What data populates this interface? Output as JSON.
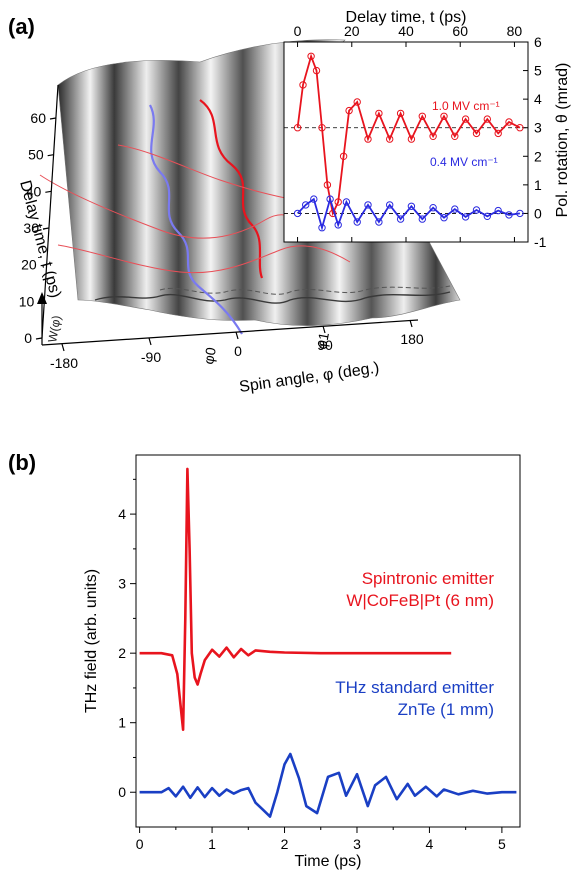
{
  "panels": {
    "a": {
      "label": "(a)",
      "surface": {
        "delay_axis": {
          "label": "Delay time, t (ps)",
          "ticks": [
            "0",
            "10",
            "20",
            "30",
            "40",
            "50",
            "60"
          ]
        },
        "spin_axis": {
          "label": "Spin angle, φ (deg.)",
          "ticks": [
            "-180",
            "-90",
            "0",
            "90",
            "180"
          ]
        },
        "markers": [
          "φ0",
          "φ1"
        ],
        "potential_label": "W(φ)"
      },
      "inset": {
        "xlabel": "Delay time, t (ps)",
        "ylabel": "Pol. rotation, θ (mrad)",
        "xticks": [
          "0",
          "20",
          "40",
          "60",
          "80"
        ],
        "yticks": [
          "-1",
          "0",
          "1",
          "2",
          "3",
          "4",
          "5",
          "6"
        ],
        "series_labels": [
          "1.0 MV cm⁻¹",
          "0.4 MV cm⁻¹"
        ],
        "colors": {
          "high": "#e8141e",
          "low": "#2a2ae0"
        }
      }
    },
    "b": {
      "label": "(b)"
    }
  },
  "chart_data": [
    {
      "type": "line",
      "xlabel": "Delay time, t (ps)",
      "ylabel": "Pol. rotation, θ (mrad)",
      "xlim": [
        -5,
        85
      ],
      "ylim": [
        -1,
        6
      ],
      "series": [
        {
          "name": "1.0 MV cm⁻¹",
          "x": [
            0,
            2,
            5,
            7,
            9,
            11,
            13,
            15,
            17,
            19,
            22,
            26,
            30,
            34,
            38,
            42,
            46,
            50,
            54,
            58,
            62,
            66,
            70,
            74,
            78,
            82
          ],
          "y": [
            3.0,
            4.5,
            5.5,
            5.0,
            3.0,
            1.0,
            0.0,
            0.4,
            2.0,
            3.6,
            3.9,
            2.6,
            3.5,
            2.6,
            3.5,
            2.6,
            3.4,
            2.7,
            3.4,
            2.7,
            3.3,
            2.8,
            3.3,
            2.8,
            3.2,
            3.0
          ]
        },
        {
          "name": "0.4 MV cm⁻¹",
          "x": [
            0,
            3,
            6,
            9,
            12,
            15,
            18,
            22,
            26,
            30,
            34,
            38,
            42,
            46,
            50,
            54,
            58,
            62,
            66,
            70,
            74,
            78,
            82
          ],
          "y": [
            0.0,
            0.3,
            0.5,
            -0.5,
            0.5,
            -0.4,
            0.4,
            -0.3,
            0.3,
            -0.3,
            0.3,
            -0.2,
            0.25,
            -0.2,
            0.2,
            -0.15,
            0.15,
            -0.12,
            0.12,
            -0.1,
            0.1,
            -0.05,
            0.0
          ]
        }
      ]
    },
    {
      "type": "line",
      "xlabel": "Time (ps)",
      "ylabel": "THz field  (arb. units)",
      "xlim": [
        -0.05,
        5.25
      ],
      "ylim": [
        -0.5,
        4.85
      ],
      "xticks": [
        0,
        1,
        2,
        3,
        4,
        5
      ],
      "yticks": [
        0,
        1,
        2,
        3,
        4
      ],
      "annotations": [
        {
          "text": "Spintronic emitter",
          "color": "#e8141e"
        },
        {
          "text": "W|CoFeB|Pt (6 nm)",
          "color": "#e8141e"
        },
        {
          "text": "THz standard emitter",
          "color": "#1a3fc4"
        },
        {
          "text": "ZnTe (1 mm)",
          "color": "#1a3fc4"
        }
      ],
      "series": [
        {
          "name": "Spintronic emitter",
          "color": "#e8141e",
          "x": [
            0.0,
            0.3,
            0.45,
            0.52,
            0.57,
            0.6,
            0.63,
            0.66,
            0.69,
            0.72,
            0.76,
            0.8,
            0.84,
            0.9,
            1.0,
            1.1,
            1.2,
            1.3,
            1.4,
            1.5,
            1.6,
            1.8,
            2.0,
            2.5,
            3.0,
            3.5,
            4.0,
            4.3
          ],
          "y": [
            2.0,
            2.0,
            1.97,
            1.7,
            1.2,
            0.9,
            2.5,
            4.65,
            3.5,
            2.0,
            1.65,
            1.55,
            1.7,
            1.9,
            2.05,
            1.95,
            2.08,
            1.94,
            2.06,
            1.97,
            2.04,
            2.02,
            2.01,
            2.0,
            2.0,
            2.0,
            2.0,
            2.0
          ]
        },
        {
          "name": "THz standard emitter",
          "color": "#1a3fc4",
          "x": [
            0.0,
            0.3,
            0.4,
            0.5,
            0.6,
            0.7,
            0.8,
            0.9,
            1.0,
            1.1,
            1.2,
            1.3,
            1.4,
            1.5,
            1.6,
            1.7,
            1.8,
            1.9,
            2.0,
            2.08,
            2.2,
            2.3,
            2.45,
            2.6,
            2.75,
            2.85,
            3.0,
            3.15,
            3.25,
            3.4,
            3.55,
            3.7,
            3.8,
            3.95,
            4.1,
            4.2,
            4.4,
            4.6,
            4.8,
            5.0,
            5.2
          ],
          "y": [
            0.0,
            0.0,
            0.06,
            -0.06,
            0.08,
            -0.08,
            0.07,
            -0.07,
            0.06,
            -0.05,
            0.04,
            -0.02,
            0.03,
            0.06,
            -0.15,
            -0.25,
            -0.35,
            0.0,
            0.4,
            0.55,
            0.2,
            -0.2,
            -0.3,
            0.22,
            0.28,
            -0.05,
            0.26,
            -0.2,
            0.1,
            0.22,
            -0.1,
            0.12,
            -0.05,
            0.08,
            -0.06,
            0.04,
            -0.03,
            0.02,
            -0.02,
            0.0,
            0.0
          ]
        }
      ]
    }
  ]
}
